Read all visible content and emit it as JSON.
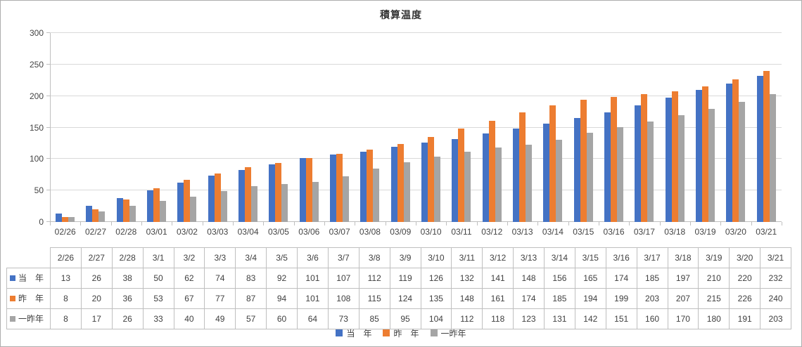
{
  "title": "積算温度",
  "colors": {
    "series_this_year": "#4472C4",
    "series_last_year": "#ED7D31",
    "series_two_years_ago": "#A5A5A5",
    "gridline": "#D9D9D9",
    "axis_line": "#BFBFBF",
    "table_border": "#BFBFBF",
    "text": "#404040",
    "frame_border": "#ADADAD"
  },
  "chart_data": {
    "type": "bar",
    "title": "積算温度",
    "xlabel": "",
    "ylabel": "",
    "ylim": [
      0,
      300
    ],
    "yticks": [
      0,
      50,
      100,
      150,
      200,
      250,
      300
    ],
    "grid": true,
    "legend_position": "bottom",
    "categories": [
      "02/26",
      "02/27",
      "02/28",
      "03/01",
      "03/02",
      "03/03",
      "03/04",
      "03/05",
      "03/06",
      "03/07",
      "03/08",
      "03/09",
      "03/10",
      "03/11",
      "03/12",
      "03/13",
      "03/14",
      "03/15",
      "03/16",
      "03/17",
      "03/18",
      "03/19",
      "03/20",
      "03/21"
    ],
    "table_headers": [
      "2/26",
      "2/27",
      "2/28",
      "3/1",
      "3/2",
      "3/3",
      "3/4",
      "3/5",
      "3/6",
      "3/7",
      "3/8",
      "3/9",
      "3/10",
      "3/11",
      "3/12",
      "3/13",
      "3/14",
      "3/15",
      "3/16",
      "3/17",
      "3/18",
      "3/19",
      "3/20",
      "3/21"
    ],
    "series": [
      {
        "key": "this-year",
        "name": "当　年",
        "color": "#4472C4",
        "values": [
          13,
          26,
          38,
          50,
          62,
          74,
          83,
          92,
          101,
          107,
          112,
          119,
          126,
          132,
          141,
          148,
          156,
          165,
          174,
          185,
          197,
          210,
          220,
          232
        ]
      },
      {
        "key": "last-year",
        "name": "昨　年",
        "color": "#ED7D31",
        "values": [
          8,
          20,
          36,
          53,
          67,
          77,
          87,
          94,
          101,
          108,
          115,
          124,
          135,
          148,
          161,
          174,
          185,
          194,
          199,
          203,
          207,
          215,
          226,
          240
        ]
      },
      {
        "key": "two-years-ago",
        "name": "一昨年",
        "color": "#A5A5A5",
        "values": [
          8,
          17,
          26,
          33,
          40,
          49,
          57,
          60,
          64,
          73,
          85,
          95,
          104,
          112,
          118,
          123,
          131,
          142,
          151,
          160,
          170,
          180,
          191,
          203
        ]
      }
    ]
  }
}
